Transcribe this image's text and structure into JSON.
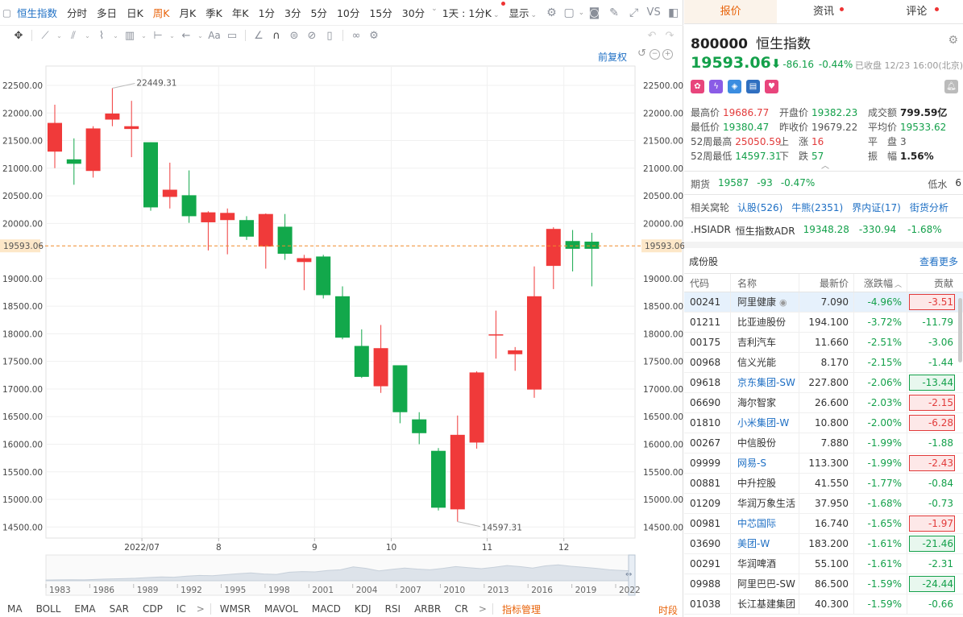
{
  "periodbar": {
    "name": "恒生指数",
    "items": [
      "分时",
      "多日",
      "日K",
      "周K",
      "月K",
      "季K",
      "年K",
      "1分",
      "3分",
      "5分",
      "10分",
      "15分",
      "30分"
    ],
    "active": "周K",
    "range": "1天 : 1分K",
    "display": "显示",
    "vs": "VS"
  },
  "toolbar": {
    "aa": "Aa"
  },
  "chart": {
    "qfq": "前复权",
    "current_price_label": "19593.06",
    "high_label": "22449.31",
    "low_label": "14597.31"
  },
  "chart_data": {
    "type": "candlestick",
    "title": "",
    "ylim": [
      14300,
      22850
    ],
    "y_ticks": [
      22500,
      22000,
      21500,
      21000,
      20500,
      20000,
      19000,
      18500,
      18000,
      17500,
      17000,
      16500,
      16000,
      15500,
      15000,
      14500
    ],
    "y_tick_labels": [
      "22500.00",
      "22000.00",
      "21500.00",
      "21000.00",
      "20500.00",
      "20000.00",
      "19000.00",
      "18500.00",
      "18000.00",
      "17500.00",
      "17000.00",
      "16500.00",
      "16000.00",
      "15500.00",
      "15000.00",
      "14500.00"
    ],
    "x_labels": [
      {
        "label": "2022/07",
        "index": 5
      },
      {
        "label": "8",
        "index": 9
      },
      {
        "label": "9",
        "index": 14
      },
      {
        "label": "10",
        "index": 18
      },
      {
        "label": "11",
        "index": 23
      },
      {
        "label": "12",
        "index": 27
      }
    ],
    "current_price": 19593.06,
    "candles": [
      {
        "o": 21300,
        "c": 21820,
        "h": 22150,
        "l": 21000
      },
      {
        "o": 21160,
        "c": 21080,
        "h": 21540,
        "l": 20700
      },
      {
        "o": 20950,
        "c": 21720,
        "h": 21760,
        "l": 20830
      },
      {
        "o": 21880,
        "c": 21990,
        "h": 22449.31,
        "l": 21760
      },
      {
        "o": 21710,
        "c": 21760,
        "h": 22220,
        "l": 21200
      },
      {
        "o": 21470,
        "c": 20290,
        "h": 21470,
        "l": 20230
      },
      {
        "o": 20480,
        "c": 20610,
        "h": 21100,
        "l": 20270
      },
      {
        "o": 20510,
        "c": 20130,
        "h": 20960,
        "l": 20010
      },
      {
        "o": 20020,
        "c": 20200,
        "h": 20220,
        "l": 19510
      },
      {
        "o": 20060,
        "c": 20190,
        "h": 20270,
        "l": 19440
      },
      {
        "o": 20060,
        "c": 19760,
        "h": 20130,
        "l": 19700
      },
      {
        "o": 19580,
        "c": 20170,
        "h": 20180,
        "l": 19180
      },
      {
        "o": 19940,
        "c": 19450,
        "h": 20170,
        "l": 19340
      },
      {
        "o": 19300,
        "c": 19370,
        "h": 19430,
        "l": 18790
      },
      {
        "o": 19400,
        "c": 18700,
        "h": 19430,
        "l": 18640
      },
      {
        "o": 18680,
        "c": 17930,
        "h": 18860,
        "l": 17900
      },
      {
        "o": 17780,
        "c": 17220,
        "h": 18080,
        "l": 17200
      },
      {
        "o": 17050,
        "c": 17740,
        "h": 18160,
        "l": 16930
      },
      {
        "o": 17430,
        "c": 16580,
        "h": 17430,
        "l": 16380
      },
      {
        "o": 16450,
        "c": 16200,
        "h": 16580,
        "l": 16000
      },
      {
        "o": 15880,
        "c": 14850,
        "h": 15930,
        "l": 14800
      },
      {
        "o": 14820,
        "c": 16170,
        "h": 16520,
        "l": 14597.31
      },
      {
        "o": 16030,
        "c": 17300,
        "h": 17320,
        "l": 15920
      },
      {
        "o": 17980,
        "c": 17990,
        "h": 18420,
        "l": 17550
      },
      {
        "o": 17630,
        "c": 17700,
        "h": 17760,
        "l": 17330
      },
      {
        "o": 16990,
        "c": 18680,
        "h": 19220,
        "l": 16840
      },
      {
        "o": 19230,
        "c": 19900,
        "h": 19930,
        "l": 18810
      },
      {
        "o": 19680,
        "c": 19540,
        "h": 19880,
        "l": 19130
      },
      {
        "o": 19670,
        "c": 19540,
        "h": 19830,
        "l": 18860
      }
    ]
  },
  "navigator": {
    "years": [
      "1983",
      "1986",
      "1989",
      "1992",
      "1995",
      "1998",
      "2001",
      "2004",
      "2007",
      "2010",
      "2013",
      "2016",
      "2019",
      "2022"
    ],
    "trend": [
      0.04,
      0.05,
      0.06,
      0.05,
      0.08,
      0.1,
      0.12,
      0.14,
      0.18,
      0.22,
      0.2,
      0.26,
      0.3,
      0.28,
      0.34,
      0.4,
      0.44,
      0.38,
      0.36,
      0.48,
      0.52,
      0.5,
      0.58,
      0.62,
      0.78,
      0.7,
      0.56,
      0.64,
      0.72,
      0.66,
      0.62,
      0.7,
      0.8,
      0.74,
      0.68,
      0.76,
      0.86,
      0.8,
      0.72,
      0.84,
      0.9,
      0.82,
      0.76,
      0.7,
      0.62,
      0.58,
      0.55
    ]
  },
  "indicators": [
    "MA",
    "BOLL",
    "EMA",
    "SAR",
    "CDP",
    "IC",
    "WMSR",
    "MAVOL",
    "MACD",
    "KDJ",
    "RSI",
    "ARBR",
    "CR"
  ],
  "indicator_manage": "指标管理",
  "shiduan": "时段",
  "right": {
    "tabs": [
      "报价",
      "资讯",
      "评论"
    ],
    "code": "800000",
    "name": "恒生指数",
    "price": "19593.06",
    "change": "-86.16",
    "change_pct": "-0.44%",
    "closed": "已收盘 12/23 16:00(北京)",
    "badges": [
      {
        "icon": "hk-flag-icon",
        "glyph": "✿",
        "color": "#e8457c"
      },
      {
        "icon": "lightning-icon",
        "glyph": "ϟ",
        "color": "#8a5ce6"
      },
      {
        "icon": "tag-icon",
        "glyph": "◈",
        "color": "#3b8de0"
      },
      {
        "icon": "doc-icon",
        "glyph": "▤",
        "color": "#2f6fc0"
      },
      {
        "icon": "heart-icon",
        "glyph": "♥",
        "color": "#e8457c"
      }
    ],
    "stats": [
      [
        {
          "l": "最高价",
          "v": "19686.77",
          "c": "red"
        },
        {
          "l": "开盘价",
          "v": "19382.23",
          "c": "green"
        },
        {
          "l": "成交额",
          "v": "799.59亿",
          "c": "black"
        }
      ],
      [
        {
          "l": "最低价",
          "v": "19380.47",
          "c": "green"
        },
        {
          "l": "昨收价",
          "v": "19679.22",
          "c": "grey"
        },
        {
          "l": "平均价",
          "v": "19533.62",
          "c": "green"
        }
      ],
      [
        {
          "l": "52周最高",
          "v": "25050.59",
          "c": "red"
        },
        {
          "l": "上　涨",
          "v": "16",
          "c": "red"
        },
        {
          "l": "平　盘",
          "v": "3",
          "c": "grey"
        }
      ],
      [
        {
          "l": "52周最低",
          "v": "14597.31",
          "c": "green"
        },
        {
          "l": "下　跌",
          "v": "57",
          "c": "green"
        },
        {
          "l": "振　幅",
          "v": "1.56%",
          "c": "black"
        }
      ]
    ],
    "futures": {
      "label": "期货",
      "price": "19587",
      "chg": "-93",
      "pct": "-0.47%",
      "low_water_label": "低水",
      "low_water": "6"
    },
    "warrants": {
      "label": "相关窝轮",
      "items": [
        "认股(526)",
        "牛熊(2351)",
        "界内证(17)",
        "街货分析"
      ]
    },
    "adr": {
      "code": ".HSIADR",
      "name": "恒生指数ADR",
      "price": "19348.28",
      "chg": "-330.94",
      "pct": "-1.68%"
    },
    "constituents": {
      "title": "成份股",
      "more": "查看更多",
      "headers": [
        "代码",
        "名称",
        "最新价",
        "涨跌幅",
        "贡献"
      ],
      "rows": [
        {
          "code": "00241",
          "name": "阿里健康",
          "price": "7.090",
          "pct": "-4.96%",
          "contrib": "-3.51",
          "box": "red",
          "link": false,
          "sel": true
        },
        {
          "code": "01211",
          "name": "比亚迪股份",
          "price": "194.100",
          "pct": "-3.72%",
          "contrib": "-11.79",
          "box": "",
          "link": false,
          "sel": false
        },
        {
          "code": "00175",
          "name": "吉利汽车",
          "price": "11.660",
          "pct": "-2.51%",
          "contrib": "-3.06",
          "box": "",
          "link": false,
          "sel": false
        },
        {
          "code": "00968",
          "name": "信义光能",
          "price": "8.170",
          "pct": "-2.15%",
          "contrib": "-1.44",
          "box": "",
          "link": false,
          "sel": false
        },
        {
          "code": "09618",
          "name": "京东集团-SW",
          "price": "227.800",
          "pct": "-2.06%",
          "contrib": "-13.44",
          "box": "green",
          "link": true,
          "sel": false
        },
        {
          "code": "06690",
          "name": "海尔智家",
          "price": "26.600",
          "pct": "-2.03%",
          "contrib": "-2.15",
          "box": "red",
          "link": false,
          "sel": false
        },
        {
          "code": "01810",
          "name": "小米集团-W",
          "price": "10.800",
          "pct": "-2.00%",
          "contrib": "-6.28",
          "box": "red",
          "link": true,
          "sel": false
        },
        {
          "code": "00267",
          "name": "中信股份",
          "price": "7.880",
          "pct": "-1.99%",
          "contrib": "-1.88",
          "box": "",
          "link": false,
          "sel": false
        },
        {
          "code": "09999",
          "name": "网易-S",
          "price": "113.300",
          "pct": "-1.99%",
          "contrib": "-2.43",
          "box": "red",
          "link": true,
          "sel": false
        },
        {
          "code": "00881",
          "name": "中升控股",
          "price": "41.550",
          "pct": "-1.77%",
          "contrib": "-0.84",
          "box": "",
          "link": false,
          "sel": false
        },
        {
          "code": "01209",
          "name": "华润万象生活",
          "price": "37.950",
          "pct": "-1.68%",
          "contrib": "-0.73",
          "box": "",
          "link": false,
          "sel": false
        },
        {
          "code": "00981",
          "name": "中芯国际",
          "price": "16.740",
          "pct": "-1.65%",
          "contrib": "-1.97",
          "box": "red",
          "link": true,
          "sel": false
        },
        {
          "code": "03690",
          "name": "美团-W",
          "price": "183.200",
          "pct": "-1.61%",
          "contrib": "-21.46",
          "box": "green",
          "link": true,
          "sel": false
        },
        {
          "code": "00291",
          "name": "华润啤酒",
          "price": "55.100",
          "pct": "-1.61%",
          "contrib": "-2.31",
          "box": "",
          "link": false,
          "sel": false
        },
        {
          "code": "09988",
          "name": "阿里巴巴-SW",
          "price": "86.500",
          "pct": "-1.59%",
          "contrib": "-24.44",
          "box": "green",
          "link": false,
          "sel": false
        },
        {
          "code": "01038",
          "name": "长江基建集团",
          "price": "40.300",
          "pct": "-1.59%",
          "contrib": "-0.66",
          "box": "",
          "link": false,
          "sel": false
        }
      ]
    }
  }
}
